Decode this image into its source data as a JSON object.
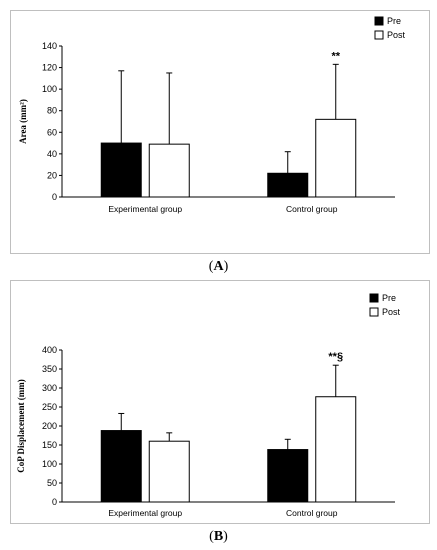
{
  "panel_labels": {
    "A": "A",
    "B": "B"
  },
  "chart_data": [
    {
      "type": "bar",
      "panel": "A",
      "title": "",
      "xlabel": "",
      "ylabel": "Area (mm²)",
      "ylim": [
        0,
        140
      ],
      "yticks": [
        0,
        20,
        40,
        60,
        80,
        100,
        120,
        140
      ],
      "categories": [
        "Experimental group",
        "Control group"
      ],
      "series": [
        {
          "name": "Pre",
          "color": "#000000",
          "values": [
            50,
            22
          ],
          "errors": [
            67,
            20
          ]
        },
        {
          "name": "Post",
          "color": "#ffffff",
          "values": [
            49,
            72
          ],
          "errors": [
            66,
            51
          ]
        }
      ],
      "annotations": [
        {
          "category": 1,
          "series": 1,
          "text": "**"
        }
      ],
      "legend": "top-right",
      "grid": false
    },
    {
      "type": "bar",
      "panel": "B",
      "title": "",
      "xlabel": "",
      "ylabel": "CoP Displacement (mm)",
      "ylim": [
        0,
        400
      ],
      "yticks": [
        0,
        50,
        100,
        150,
        200,
        250,
        300,
        350,
        400
      ],
      "categories": [
        "Experimental group",
        "Control group"
      ],
      "series": [
        {
          "name": "Pre",
          "color": "#000000",
          "values": [
            188,
            138
          ],
          "errors": [
            45,
            27
          ]
        },
        {
          "name": "Post",
          "color": "#ffffff",
          "values": [
            160,
            277
          ],
          "errors": [
            22,
            83
          ]
        }
      ],
      "annotations": [
        {
          "category": 1,
          "series": 1,
          "text": "**§"
        }
      ],
      "legend": "top-right",
      "grid": false
    }
  ]
}
